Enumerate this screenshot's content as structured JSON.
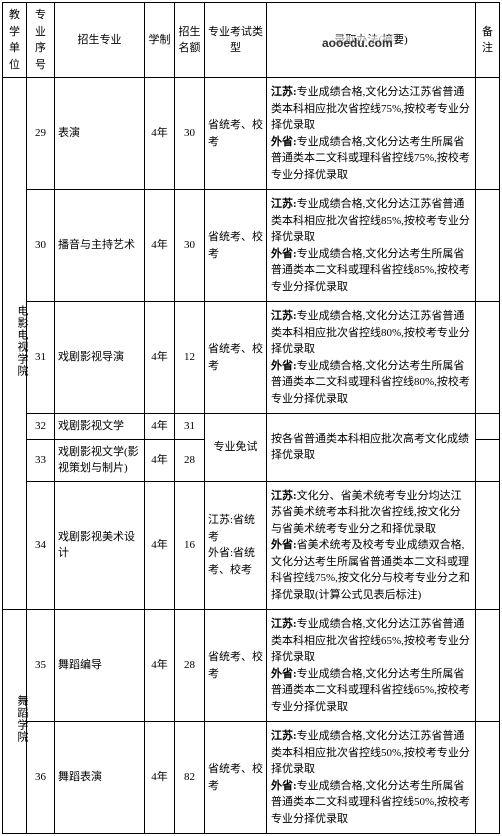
{
  "watermark": "aooedu.com",
  "headers": [
    "教学单位",
    "专业序号",
    "招生专业",
    "学制",
    "招生名额",
    "专业考试类型",
    "录取办法(摘要)",
    "备注"
  ],
  "col_widths": [
    "24px",
    "28px",
    "90px",
    "30px",
    "30px",
    "62px",
    "auto",
    "24px"
  ],
  "units": [
    {
      "name": "电影电视学院",
      "rowspan": 6,
      "rows": [
        {
          "seq": "29",
          "major": "表演",
          "dur": "4年",
          "quota": "30",
          "exam": "省统考、校考",
          "admission": [
            {
              "b": "江苏:",
              "t": "专业成绩合格,文化分达江苏省普通类本科相应批次省控线75%,按校考专业分择优录取"
            },
            {
              "b": "外省:",
              "t": "专业成绩合格,文化分达考生所属省普通类本二文科或理科省控线75%,按校考专业分择优录取"
            }
          ],
          "note": ""
        },
        {
          "seq": "30",
          "major": "播音与主持艺术",
          "dur": "4年",
          "quota": "30",
          "exam": "省统考、校考",
          "admission": [
            {
              "b": "江苏:",
              "t": "专业成绩合格,文化分达江苏省普通类本科相应批次省控线85%,按校考专业分择优录取"
            },
            {
              "b": "外省:",
              "t": "专业成绩合格,文化分达考生所属省普通类本二文科或理科省控线85%,按校考专业分择优录取"
            }
          ],
          "note": ""
        },
        {
          "seq": "31",
          "major": "戏剧影视导演",
          "dur": "4年",
          "quota": "12",
          "exam": "省统考、校考",
          "admission": [
            {
              "b": "江苏:",
              "t": "专业成绩合格,文化分达江苏省普通类本科相应批次省控线80%,按校考专业分择优录取"
            },
            {
              "b": "外省:",
              "t": "专业成绩合格,文化分达考生所属省普通类本二文科或理科省控线80%,按校考专业分择优录取"
            }
          ],
          "note": ""
        },
        {
          "seq": "32",
          "major": "戏剧影视文学",
          "dur": "4年",
          "quota": "31",
          "exam_shared": "专业免试",
          "exam_rowspan": 2,
          "admission_shared": "按各省普通类本科相应批次高考文化成绩择优录取",
          "admission_rowspan": 2,
          "note": ""
        },
        {
          "seq": "33",
          "major": "戏剧影视文学(影视策划与制片)",
          "dur": "4年",
          "quota": "28",
          "note": ""
        },
        {
          "seq": "34",
          "major": "戏剧影视美术设计",
          "dur": "4年",
          "quota": "16",
          "exam": "江苏:省统考\n外省:省统考、校考",
          "admission": [
            {
              "b": "江苏:",
              "t": "文化分、省美术统考专业分均达江苏省美术统考本科批次省控线,按文化分与省美术统考专业分之和择优录取"
            },
            {
              "b": "外省:",
              "t": "省美术统考及校考专业成绩双合格,文化分达考生所属省普通类本二文科或理科省控线75%,按文化分与校考专业分之和择优录取(计算公式见表后标注)"
            }
          ],
          "note": ""
        }
      ]
    },
    {
      "name": "舞蹈学院",
      "rowspan": 2,
      "rows": [
        {
          "seq": "35",
          "major": "舞蹈编导",
          "dur": "4年",
          "quota": "28",
          "exam": "省统考、校考",
          "admission": [
            {
              "b": "江苏:",
              "t": "专业成绩合格,文化分达江苏省普通类本科相应批次省控线65%,按校考专业分择优录取"
            },
            {
              "b": "外省:",
              "t": "专业成绩合格,文化分达考生所属省普通类本二文科或理科省控线65%,按校考专业分择优录取"
            }
          ],
          "note": ""
        },
        {
          "seq": "36",
          "major": "舞蹈表演",
          "dur": "4年",
          "quota": "82",
          "exam": "省统考、校考",
          "admission": [
            {
              "b": "江苏:",
              "t": "专业成绩合格,文化分达江苏省普通类本科相应批次省控线50%,按校考专业分择优录取"
            },
            {
              "b": "外省:",
              "t": "专业成绩合格,文化分达考生所属省普通类本二文科或理科省控线50%,按校考专业分择优录取"
            }
          ],
          "note": ""
        }
      ]
    }
  ]
}
